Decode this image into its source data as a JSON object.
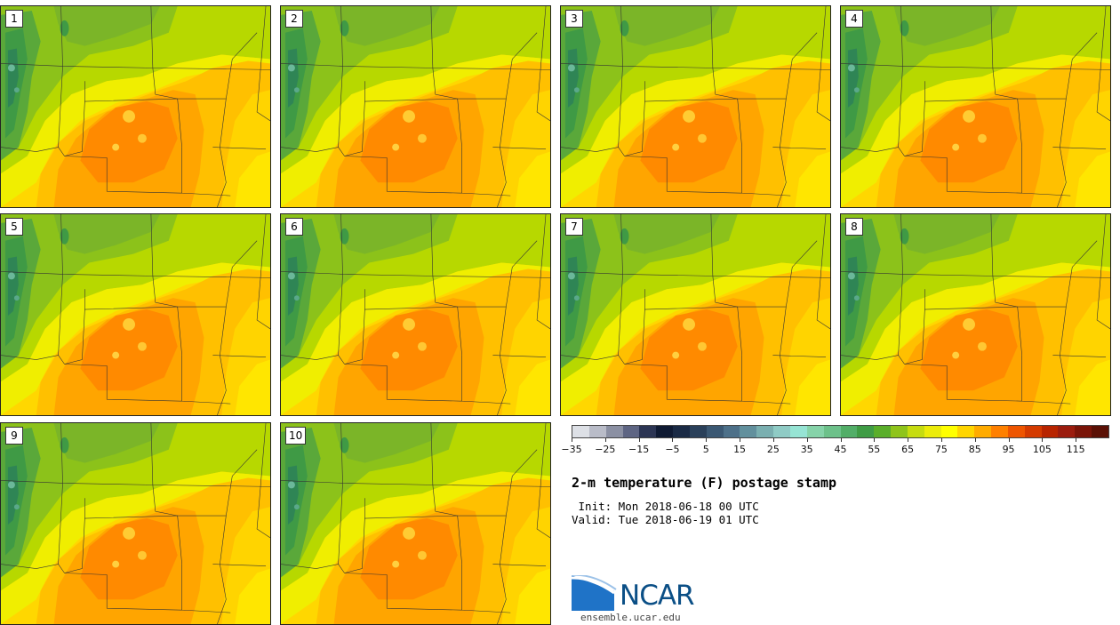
{
  "panels": [
    {
      "label": "1"
    },
    {
      "label": "2"
    },
    {
      "label": "3"
    },
    {
      "label": "4"
    },
    {
      "label": "5"
    },
    {
      "label": "6"
    },
    {
      "label": "7"
    },
    {
      "label": "8"
    },
    {
      "label": "9"
    },
    {
      "label": "10"
    }
  ],
  "colorbar": {
    "colors": [
      "#dde0e6",
      "#b9bcc8",
      "#8b90a3",
      "#5e6583",
      "#2c3554",
      "#0f1a33",
      "#1a2a45",
      "#2a405a",
      "#3b5873",
      "#4d7089",
      "#62909d",
      "#7aafb0",
      "#8fcbc5",
      "#96e4d4",
      "#86d3a9",
      "#6dc18a",
      "#52ae68",
      "#3f9c45",
      "#5aae2a",
      "#8fc41b",
      "#c6dc10",
      "#ecec0a",
      "#ffff00",
      "#ffd500",
      "#ffab00",
      "#ff8000",
      "#ee5500",
      "#d43a00",
      "#b82400",
      "#9b1c0e",
      "#7a1408",
      "#5a1005"
    ],
    "ticks": [
      "−35",
      "−25",
      "−15",
      "−5",
      "5",
      "15",
      "25",
      "35",
      "45",
      "55",
      "65",
      "75",
      "85",
      "95",
      "105",
      "115"
    ]
  },
  "title": "2-m temperature (F) postage stamp",
  "init_text": " Init: Mon 2018-06-18 00 UTC",
  "valid_text": "Valid: Tue 2018-06-19 01 UTC",
  "logo": {
    "text": "NCAR",
    "site": "ensemble.ucar.edu"
  }
}
